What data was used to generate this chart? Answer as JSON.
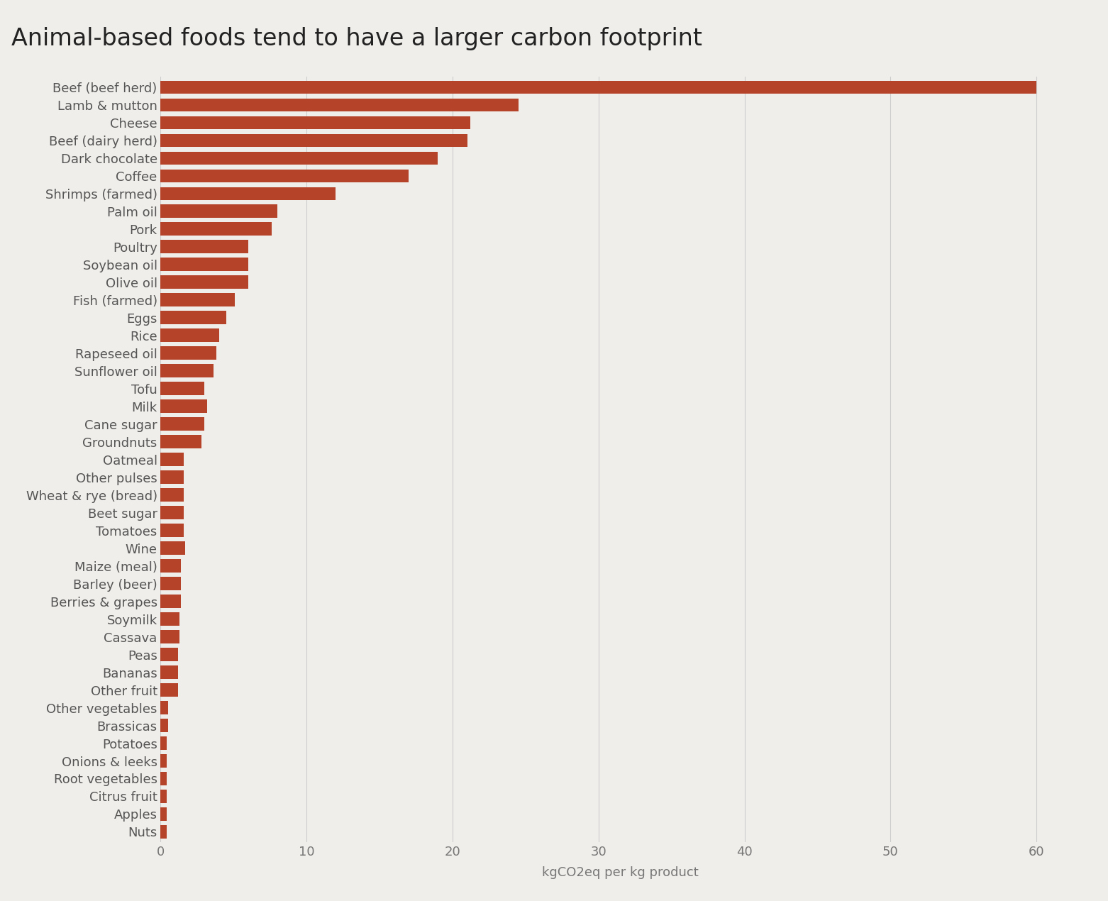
{
  "title": "Animal-based foods tend to have a larger carbon footprint",
  "xlabel": "kgCO2eq per kg product",
  "bar_color": "#b5432a",
  "background_color": "#f0eeea",
  "categories": [
    "Beef (beef herd)",
    "Lamb & mutton",
    "Cheese",
    "Beef (dairy herd)",
    "Dark chocolate",
    "Coffee",
    "Shrimps (farmed)",
    "Palm oil",
    "Pork",
    "Poultry",
    "Soybean oil",
    "Olive oil",
    "Fish (farmed)",
    "Eggs",
    "Rice",
    "Rapeseed oil",
    "Sunflower oil",
    "Tofu",
    "Milk",
    "Cane sugar",
    "Groundnuts",
    "Oatmeal",
    "Other pulses",
    "Wheat & rye (bread)",
    "Beet sugar",
    "Tomatoes",
    "Wine",
    "Maize (meal)",
    "Barley (beer)",
    "Berries & grapes",
    "Soymilk",
    "Cassava",
    "Peas",
    "Bananas",
    "Other fruit",
    "Other vegetables",
    "Brassicas",
    "Potatoes",
    "Onions & leeks",
    "Root vegetables",
    "Citrus fruit",
    "Apples",
    "Nuts"
  ],
  "values": [
    60.0,
    24.5,
    21.2,
    21.0,
    19.0,
    17.0,
    12.0,
    8.0,
    7.6,
    6.0,
    6.0,
    6.0,
    5.1,
    4.5,
    4.0,
    3.8,
    3.6,
    3.0,
    3.2,
    3.0,
    2.8,
    1.6,
    1.6,
    1.6,
    1.6,
    1.6,
    1.7,
    1.4,
    1.4,
    1.4,
    1.3,
    1.3,
    1.2,
    1.2,
    1.2,
    0.5,
    0.5,
    0.4,
    0.4,
    0.4,
    0.4,
    0.4,
    0.4
  ],
  "xlim": [
    0,
    63
  ],
  "xticks": [
    0,
    10,
    20,
    30,
    40,
    50,
    60
  ],
  "title_fontsize": 24,
  "label_fontsize": 13,
  "tick_fontsize": 13,
  "ylabel_fontsize": 13
}
